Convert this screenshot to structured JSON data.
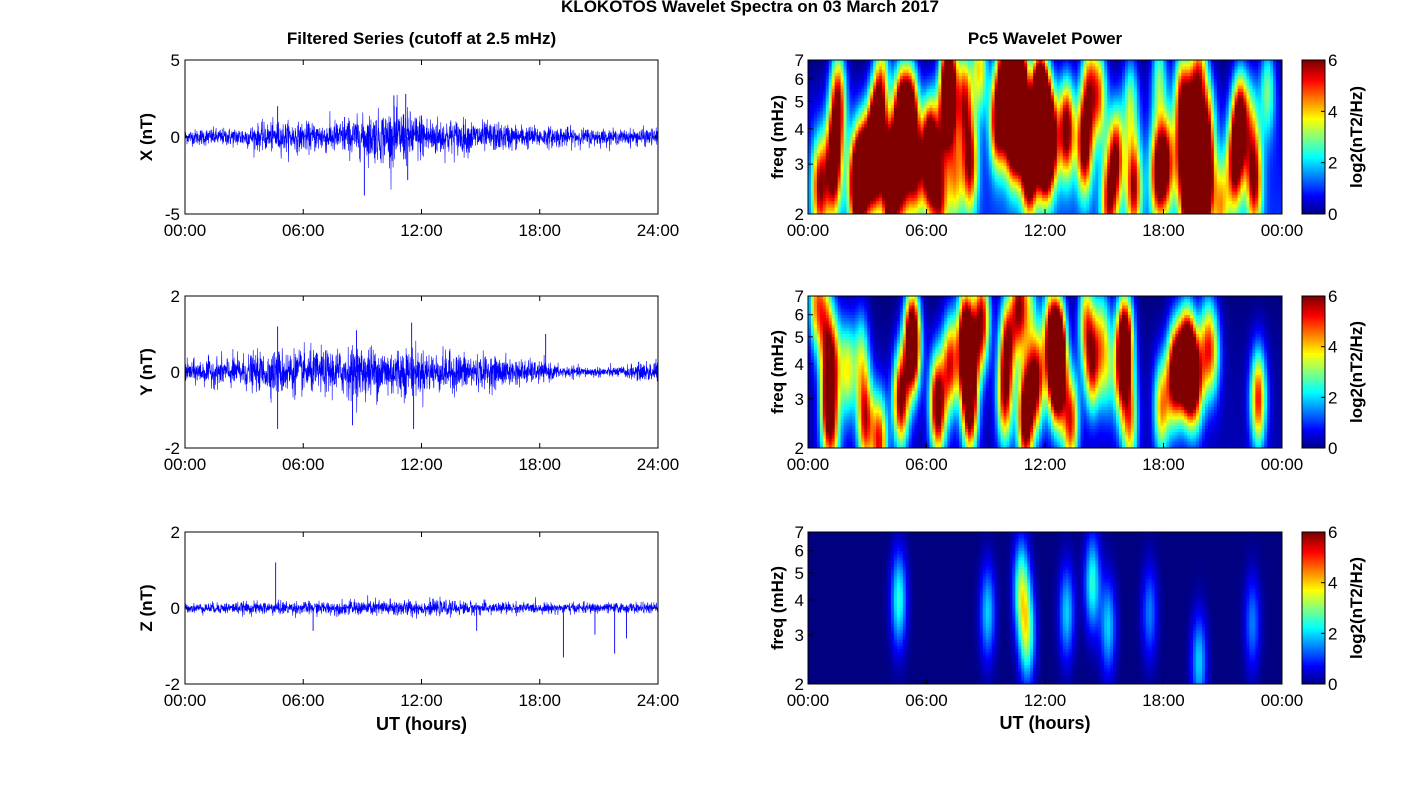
{
  "figure": {
    "suptitle": "KLOKOTOS Wavelet Spectra on 03 March 2017"
  },
  "chart_data": [
    {
      "type": "line",
      "title": "Filtered Series (cutoff at 2.5 mHz)",
      "ylabel": "X (nT)",
      "xlabel": "",
      "xlim": [
        0,
        24
      ],
      "ylim": [
        -5,
        5
      ],
      "xticks": [
        "00:00",
        "06:00",
        "12:00",
        "18:00",
        "24:00"
      ],
      "yticks": [
        "5",
        "0",
        "-5"
      ],
      "color": "#0000ff",
      "series": [
        {
          "x_hours": [
            0,
            1,
            2,
            3,
            4,
            5,
            6,
            7,
            8,
            9,
            10,
            11,
            12,
            13,
            14,
            15,
            16,
            17,
            18,
            19,
            20,
            21,
            22,
            23,
            24
          ],
          "amplitude_nT": [
            0.4,
            0.5,
            0.5,
            0.6,
            0.8,
            0.9,
            0.8,
            0.9,
            1.0,
            1.2,
            1.5,
            1.6,
            1.3,
            1.1,
            1.0,
            0.9,
            0.8,
            0.7,
            0.6,
            0.6,
            0.5,
            0.5,
            0.4,
            0.5,
            0.5
          ]
        }
      ],
      "spikes": [
        {
          "x": 4.7,
          "y": 2.0
        },
        {
          "x": 8.1,
          "y": 1.3
        },
        {
          "x": 9.1,
          "y": -3.8
        },
        {
          "x": 10.6,
          "y": 2.7
        },
        {
          "x": 11.2,
          "y": 2.8
        },
        {
          "x": 11.3,
          "y": -2.8
        },
        {
          "x": 12.0,
          "y": 1.4
        }
      ]
    },
    {
      "type": "line",
      "title": "",
      "ylabel": "Y (nT)",
      "xlabel": "",
      "xlim": [
        0,
        24
      ],
      "ylim": [
        -2,
        2
      ],
      "xticks": [
        "00:00",
        "06:00",
        "12:00",
        "18:00",
        "24:00"
      ],
      "yticks": [
        "2",
        "0",
        "-2"
      ],
      "color": "#0000ff",
      "series": [
        {
          "x_hours": [
            0,
            1,
            2,
            3,
            4,
            5,
            6,
            7,
            8,
            9,
            10,
            11,
            12,
            13,
            14,
            15,
            16,
            17,
            18,
            19,
            20,
            21,
            22,
            23,
            24
          ],
          "amplitude_nT": [
            0.25,
            0.3,
            0.35,
            0.4,
            0.45,
            0.55,
            0.5,
            0.5,
            0.55,
            0.6,
            0.6,
            0.6,
            0.5,
            0.45,
            0.45,
            0.4,
            0.35,
            0.3,
            0.25,
            0.15,
            0.12,
            0.12,
            0.12,
            0.2,
            0.3
          ]
        }
      ],
      "spikes": [
        {
          "x": 4.7,
          "y": 1.2
        },
        {
          "x": 4.7,
          "y": -1.5
        },
        {
          "x": 8.7,
          "y": 1.1
        },
        {
          "x": 8.5,
          "y": -1.4
        },
        {
          "x": 11.5,
          "y": 1.3
        },
        {
          "x": 11.6,
          "y": -1.5
        },
        {
          "x": 18.3,
          "y": 1.0
        }
      ]
    },
    {
      "type": "line",
      "title": "",
      "ylabel": "Z (nT)",
      "xlabel": "UT (hours)",
      "xlim": [
        0,
        24
      ],
      "ylim": [
        -2,
        2
      ],
      "xticks": [
        "00:00",
        "06:00",
        "12:00",
        "18:00",
        "24:00"
      ],
      "yticks": [
        "2",
        "0",
        "-2"
      ],
      "color": "#0000ff",
      "series": [
        {
          "x_hours": [
            0,
            1,
            2,
            3,
            4,
            5,
            6,
            7,
            8,
            9,
            10,
            11,
            12,
            13,
            14,
            15,
            16,
            17,
            18,
            19,
            20,
            21,
            22,
            23,
            24
          ],
          "amplitude_nT": [
            0.1,
            0.12,
            0.13,
            0.14,
            0.15,
            0.16,
            0.15,
            0.15,
            0.16,
            0.18,
            0.2,
            0.2,
            0.18,
            0.17,
            0.16,
            0.15,
            0.14,
            0.13,
            0.12,
            0.12,
            0.12,
            0.12,
            0.12,
            0.12,
            0.12
          ]
        }
      ],
      "spikes": [
        {
          "x": 4.6,
          "y": 1.2
        },
        {
          "x": 6.5,
          "y": -0.6
        },
        {
          "x": 14.8,
          "y": -0.6
        },
        {
          "x": 19.2,
          "y": -1.3
        },
        {
          "x": 20.8,
          "y": -0.7
        },
        {
          "x": 21.8,
          "y": -1.2
        },
        {
          "x": 22.4,
          "y": -0.8
        },
        {
          "x": 24.0,
          "y": 0.3
        }
      ]
    },
    {
      "type": "heatmap",
      "title": "Pc5 Wavelet Power",
      "ylabel": "freq (mHz)",
      "xlabel": "",
      "xlim": [
        0,
        24
      ],
      "ylim": [
        2,
        7
      ],
      "yscale": "log",
      "xticks": [
        "00:00",
        "06:00",
        "12:00",
        "18:00",
        "00:00"
      ],
      "yticks": [
        "7",
        "6",
        "5",
        "4",
        "3",
        "2"
      ],
      "colorbar": {
        "label": "log2(nT2/Hz)",
        "range": [
          0,
          6
        ],
        "ticks": [
          "6",
          "4",
          "2",
          "0"
        ],
        "colormap": "jet"
      },
      "hot_intervals": [
        {
          "t": 0.6,
          "f": 2.5,
          "p": 5
        },
        {
          "t": 1.3,
          "f": 3.2,
          "p": 4.5
        },
        {
          "t": 2.7,
          "f": 2.7,
          "p": 5
        },
        {
          "t": 4.2,
          "f": 2.8,
          "p": 6
        },
        {
          "t": 4.7,
          "f": 4.5,
          "p": 6
        },
        {
          "t": 6.2,
          "f": 3.0,
          "p": 5
        },
        {
          "t": 8.2,
          "f": 3.0,
          "p": 5
        },
        {
          "t": 9.6,
          "f": 4.3,
          "p": 6
        },
        {
          "t": 10.6,
          "f": 4.5,
          "p": 6
        },
        {
          "t": 11.2,
          "f": 3.0,
          "p": 6
        },
        {
          "t": 12.0,
          "f": 3.5,
          "p": 6
        },
        {
          "t": 13.1,
          "f": 4.0,
          "p": 6
        },
        {
          "t": 14.0,
          "f": 3.5,
          "p": 6
        },
        {
          "t": 15.6,
          "f": 3.2,
          "p": 5
        },
        {
          "t": 16.5,
          "f": 2.5,
          "p": 5
        },
        {
          "t": 17.7,
          "f": 2.8,
          "p": 5
        },
        {
          "t": 21.6,
          "f": 3.0,
          "p": 5
        },
        {
          "t": 22.6,
          "f": 2.6,
          "p": 5
        }
      ]
    },
    {
      "type": "heatmap",
      "title": "",
      "ylabel": "freq (mHz)",
      "xlabel": "",
      "xlim": [
        0,
        24
      ],
      "ylim": [
        2,
        7
      ],
      "yscale": "log",
      "xticks": [
        "00:00",
        "06:00",
        "12:00",
        "18:00",
        "00:00"
      ],
      "yticks": [
        "7",
        "6",
        "5",
        "4",
        "3",
        "2"
      ],
      "colorbar": {
        "label": "log2(nT2/Hz)",
        "range": [
          0,
          6
        ],
        "ticks": [
          "6",
          "4",
          "2",
          "0"
        ],
        "colormap": "jet"
      },
      "hot_intervals": [
        {
          "t": 1.0,
          "f": 2.6,
          "p": 4
        },
        {
          "t": 2.9,
          "f": 2.5,
          "p": 5
        },
        {
          "t": 4.7,
          "f": 3.0,
          "p": 6
        },
        {
          "t": 5.3,
          "f": 4.6,
          "p": 5
        },
        {
          "t": 7.2,
          "f": 4.0,
          "p": 5
        },
        {
          "t": 8.2,
          "f": 2.7,
          "p": 5
        },
        {
          "t": 10.1,
          "f": 4.8,
          "p": 5
        },
        {
          "t": 11.0,
          "f": 2.5,
          "p": 6
        },
        {
          "t": 11.6,
          "f": 3.5,
          "p": 5
        },
        {
          "t": 13.3,
          "f": 2.5,
          "p": 5
        },
        {
          "t": 14.4,
          "f": 4.0,
          "p": 5
        },
        {
          "t": 16.3,
          "f": 2.5,
          "p": 4
        },
        {
          "t": 17.9,
          "f": 2.8,
          "p": 4
        },
        {
          "t": 22.8,
          "f": 3.0,
          "p": 5
        }
      ]
    },
    {
      "type": "heatmap",
      "title": "",
      "ylabel": "freq (mHz)",
      "xlabel": "UT (hours)",
      "xlim": [
        0,
        24
      ],
      "ylim": [
        2,
        7
      ],
      "yscale": "log",
      "xticks": [
        "00:00",
        "06:00",
        "12:00",
        "18:00",
        "00:00"
      ],
      "yticks": [
        "7",
        "6",
        "5",
        "4",
        "3",
        "2"
      ],
      "colorbar": {
        "label": "log2(nT2/Hz)",
        "range": [
          0,
          6
        ],
        "ticks": [
          "6",
          "4",
          "2",
          "0"
        ],
        "colormap": "jet"
      },
      "hot_intervals": [
        {
          "t": 4.6,
          "f": 4.0,
          "p": 2.5
        },
        {
          "t": 9.1,
          "f": 3.6,
          "p": 2
        },
        {
          "t": 10.8,
          "f": 4.4,
          "p": 3
        },
        {
          "t": 11.1,
          "f": 3.0,
          "p": 3
        },
        {
          "t": 13.1,
          "f": 3.6,
          "p": 2
        },
        {
          "t": 14.4,
          "f": 4.6,
          "p": 2.5
        },
        {
          "t": 15.2,
          "f": 3.2,
          "p": 2
        },
        {
          "t": 17.3,
          "f": 3.6,
          "p": 1.5
        },
        {
          "t": 19.8,
          "f": 2.4,
          "p": 2
        },
        {
          "t": 22.5,
          "f": 3.3,
          "p": 1.5
        }
      ]
    }
  ]
}
